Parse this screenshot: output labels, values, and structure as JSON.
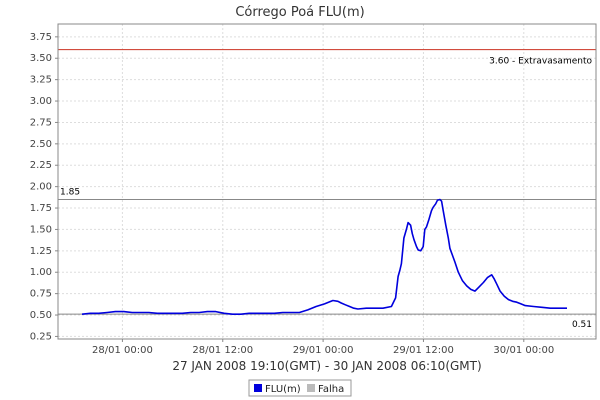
{
  "chart_data": {
    "type": "line",
    "title": "Córrego Poá FLU(m)",
    "xlabel": "27 JAN 2008 19:10(GMT) - 30 JAN 2008 06:10(GMT)",
    "ylabel": "",
    "ylim": [
      0.22,
      3.9
    ],
    "xlim_hours": [
      0,
      59
    ],
    "y_ticks": [
      "3.75",
      "3.50",
      "3.25",
      "3.00",
      "2.75",
      "2.50",
      "2.25",
      "2.00",
      "1.75",
      "1.50",
      "1.25",
      "1.00",
      "0.75",
      "0.50",
      "0.25"
    ],
    "x_ticks": [
      {
        "hours": 4.8333,
        "label": "28/01 00:00"
      },
      {
        "hours": 16.8333,
        "label": "28/01 12:00"
      },
      {
        "hours": 28.8333,
        "label": "29/01 00:00"
      },
      {
        "hours": 40.8333,
        "label": "29/01 12:00"
      },
      {
        "hours": 52.8333,
        "label": "30/01 00:00"
      }
    ],
    "grid": true,
    "reference_lines": [
      {
        "value": 3.6,
        "label": "3.60 - Extravasamento",
        "color": "#cc3322"
      },
      {
        "value": 1.85,
        "label": "1.85",
        "color": "#888888"
      },
      {
        "value": 0.51,
        "label": "0.51",
        "color": "#888888"
      }
    ],
    "series": [
      {
        "name": "FLU(m)",
        "color": "#0000dd",
        "x": [
          0,
          1,
          2,
          3,
          4,
          5,
          6,
          7,
          8,
          9,
          10,
          11,
          12,
          13,
          14,
          15,
          16,
          17,
          18,
          19,
          20,
          21,
          22,
          23,
          24,
          25,
          26,
          27,
          28,
          29,
          30,
          30.6,
          31,
          31.5,
          32,
          32.5,
          33,
          34,
          35,
          36,
          37,
          37.5,
          37.8,
          38,
          38.2,
          38.5,
          38.8,
          39,
          39.3,
          39.5,
          39.7,
          40,
          40.2,
          40.5,
          40.8,
          41,
          41.2,
          41.5,
          41.8,
          42,
          42.3,
          42.5,
          42.8,
          43,
          43.2,
          43.5,
          43.8,
          44,
          44.3,
          44.6,
          45,
          45.5,
          46,
          46.5,
          47,
          47.5,
          48,
          48.5,
          49,
          49.3,
          49.6,
          50,
          50.5,
          51,
          51.5,
          52,
          52.5,
          53,
          54,
          55,
          56,
          57,
          58
        ],
        "values": [
          0.51,
          0.52,
          0.52,
          0.53,
          0.54,
          0.54,
          0.53,
          0.53,
          0.53,
          0.52,
          0.52,
          0.52,
          0.52,
          0.53,
          0.53,
          0.54,
          0.54,
          0.52,
          0.51,
          0.51,
          0.52,
          0.52,
          0.52,
          0.52,
          0.53,
          0.53,
          0.53,
          0.56,
          0.6,
          0.63,
          0.67,
          0.66,
          0.64,
          0.62,
          0.6,
          0.58,
          0.57,
          0.58,
          0.58,
          0.58,
          0.6,
          0.7,
          0.95,
          1.02,
          1.1,
          1.4,
          1.5,
          1.58,
          1.55,
          1.45,
          1.38,
          1.3,
          1.26,
          1.25,
          1.3,
          1.5,
          1.53,
          1.62,
          1.72,
          1.76,
          1.8,
          1.84,
          1.85,
          1.83,
          1.72,
          1.55,
          1.4,
          1.28,
          1.2,
          1.12,
          1.0,
          0.9,
          0.84,
          0.8,
          0.78,
          0.83,
          0.88,
          0.94,
          0.97,
          0.92,
          0.86,
          0.78,
          0.72,
          0.68,
          0.66,
          0.65,
          0.63,
          0.61,
          0.6,
          0.59,
          0.58,
          0.58,
          0.58
        ]
      }
    ],
    "legend": {
      "position": "bottom-center",
      "items": [
        {
          "label": "FLU(m)",
          "color": "#0000dd"
        },
        {
          "label": "Falha",
          "color": "#bbbbbb"
        }
      ]
    }
  }
}
